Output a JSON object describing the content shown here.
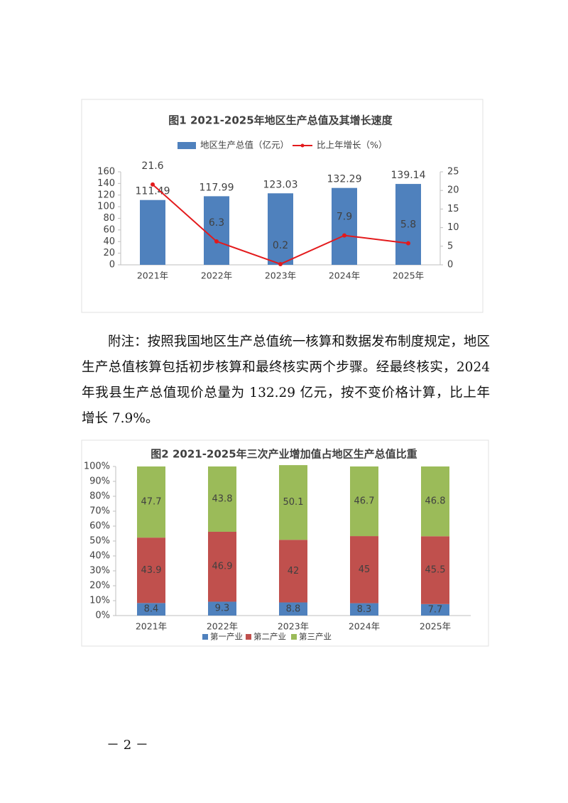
{
  "chart_data": [
    {
      "type": "combo",
      "title": "图1  2021-2025年地区生产总值及其增长速度",
      "categories": [
        "2021年",
        "2022年",
        "2023年",
        "2024年",
        "2025年"
      ],
      "series": [
        {
          "name": "地区生产总值（亿元）",
          "color": "#4f81bd",
          "values": [
            111.49,
            117.99,
            123.03,
            132.29,
            139.14
          ]
        },
        {
          "name": "比上年增长（%）",
          "color": "#e31a1c",
          "axis": "y2",
          "values": [
            21.6,
            6.3,
            0.2,
            7.9,
            5.8
          ]
        }
      ],
      "ylim": [
        0,
        160
      ],
      "yticks": [
        0,
        20,
        40,
        60,
        80,
        100,
        120,
        140,
        160
      ],
      "y2lim": [
        0,
        25
      ],
      "y2ticks": [
        0,
        5,
        10,
        15,
        20,
        25
      ],
      "grid": false,
      "legend": "top"
    },
    {
      "type": "stacked",
      "title": "图2  2021-2025年三次产业增加值占地区生产总值比重",
      "categories": [
        "2021年",
        "2022年",
        "2023年",
        "2024年",
        "2025年"
      ],
      "series": [
        {
          "name": "第一产业",
          "color": "#4f81bd",
          "values": [
            8.4,
            9.3,
            8.8,
            8.3,
            7.7
          ]
        },
        {
          "name": "第二产业",
          "color": "#c0504d",
          "values": [
            43.9,
            46.9,
            42,
            45,
            45.5
          ]
        },
        {
          "name": "第三产业",
          "color": "#9bbb59",
          "values": [
            47.7,
            43.8,
            50.1,
            46.7,
            46.8
          ]
        }
      ],
      "ylim": [
        0,
        100
      ],
      "yticks": [
        {
          "value": 0,
          "label": "0%"
        },
        {
          "value": 10,
          "label": "10%"
        },
        {
          "value": 20,
          "label": "20%"
        },
        {
          "value": 30,
          "label": "30%"
        },
        {
          "value": 40,
          "label": "40%"
        },
        {
          "value": 50,
          "label": "50%"
        },
        {
          "value": 60,
          "label": "60%"
        },
        {
          "value": 70,
          "label": "70%"
        },
        {
          "value": 80,
          "label": "80%"
        },
        {
          "value": 90,
          "label": "90%"
        },
        {
          "value": 100,
          "label": "100%"
        }
      ],
      "grid": false,
      "legend": "bottom"
    }
  ],
  "note": "附注：按照我国地区生产总值统一核算和数据发布制度规定，地区生产总值核算包括初步核算和最终核实两个步骤。经最终核实，2024 年我县生产总值现价总量为 132.29 亿元，按不变价格计算，比上年增长 7.9%。",
  "page_number": "－  2  －"
}
